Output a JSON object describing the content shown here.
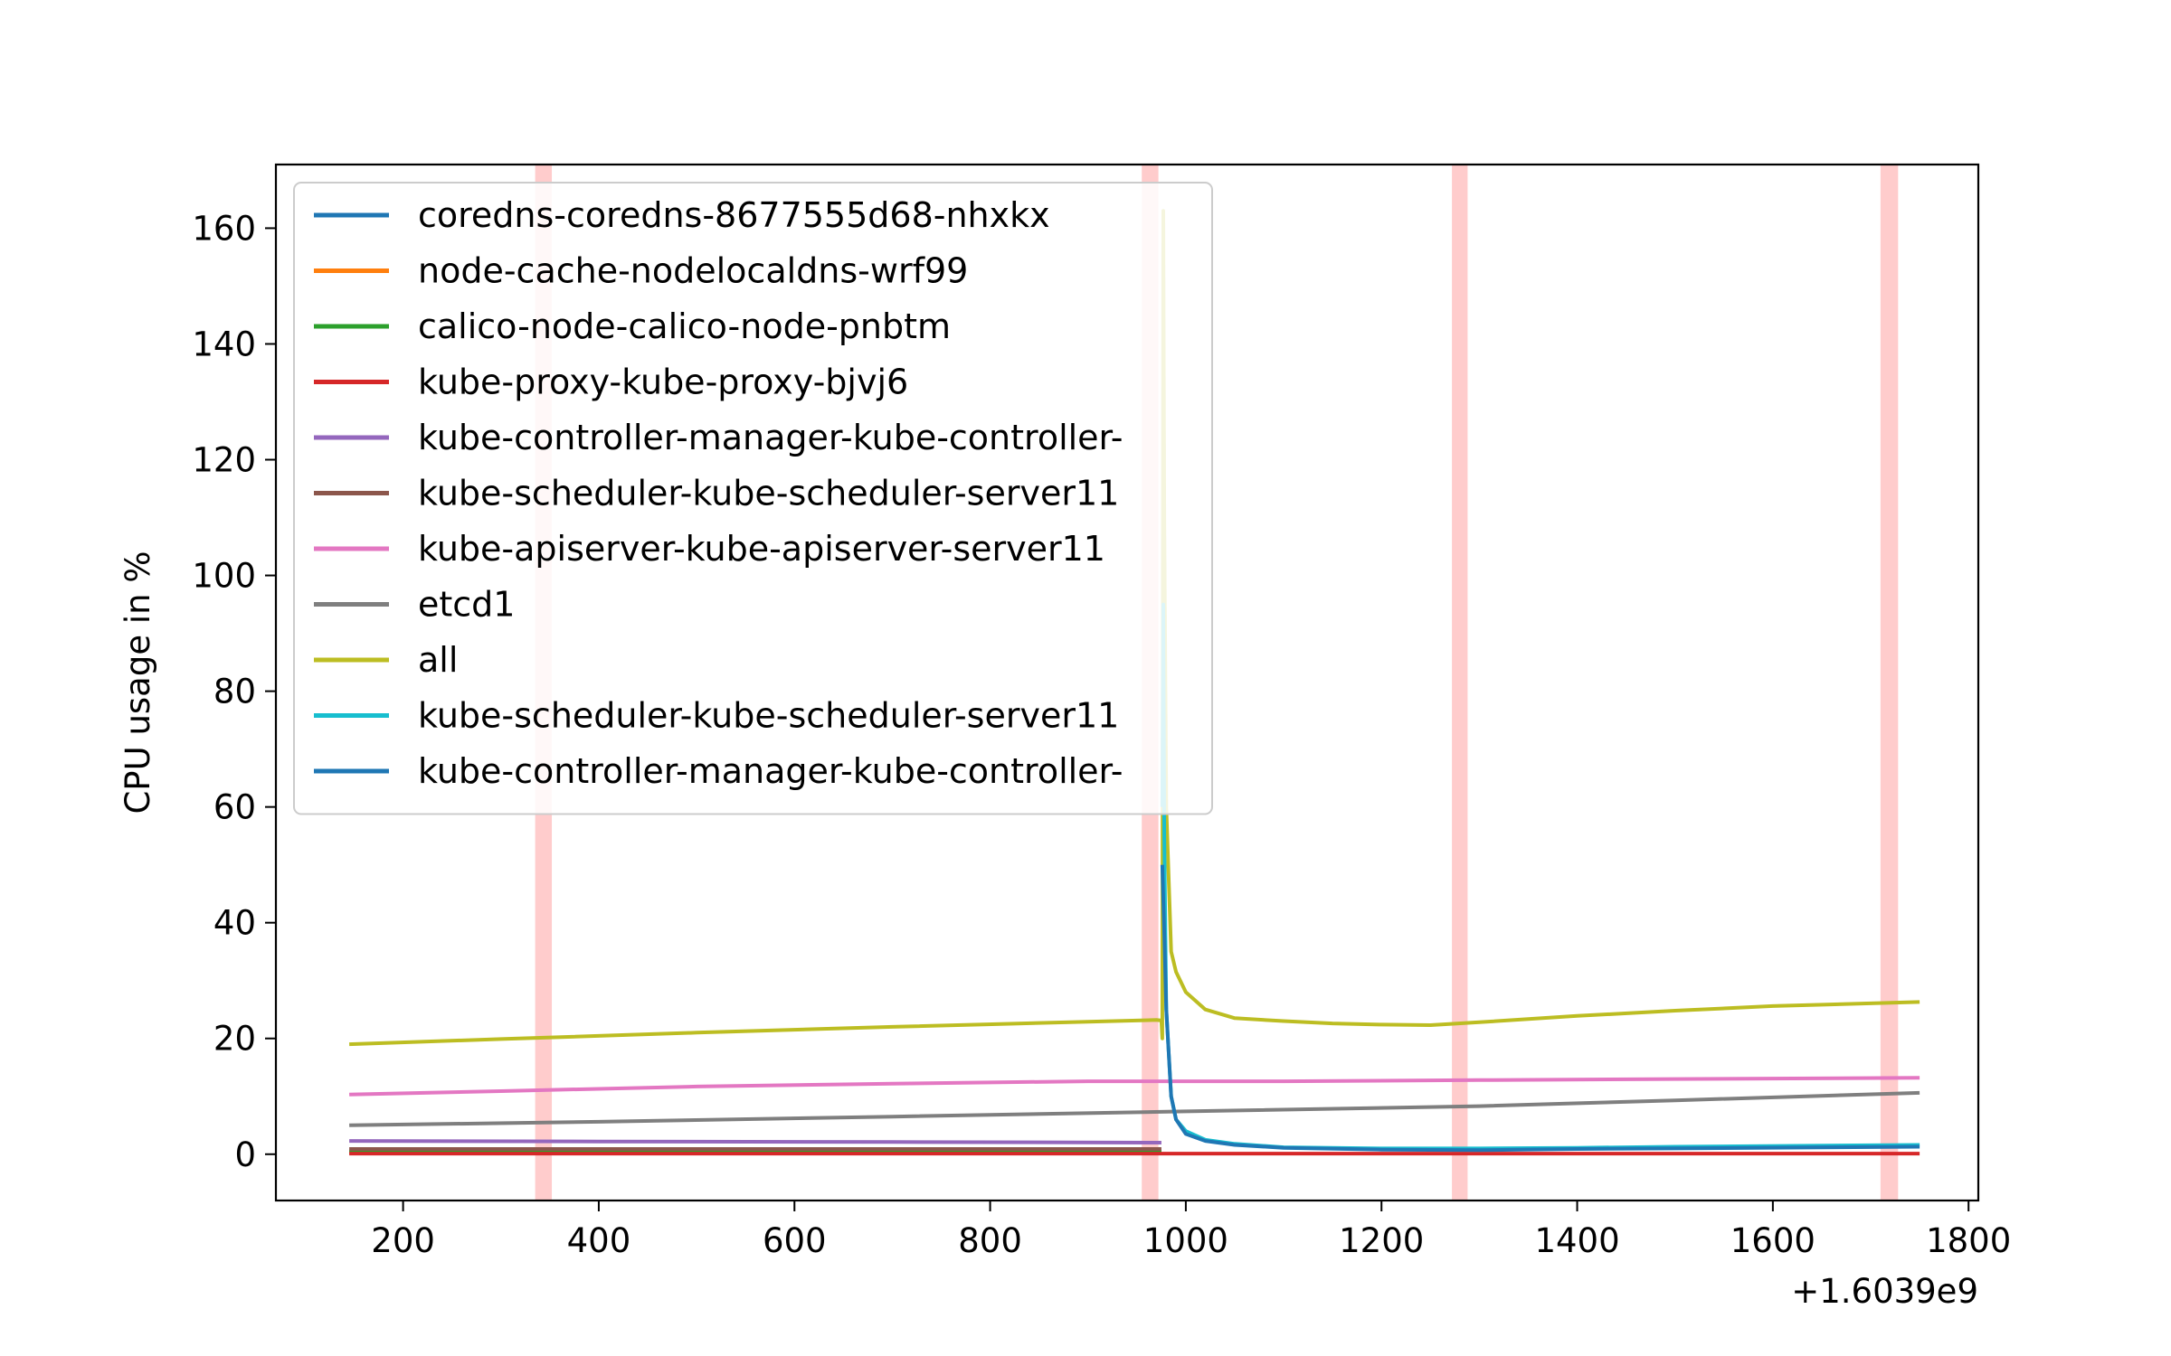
{
  "chart_data": {
    "type": "line",
    "xlabel": "",
    "ylabel": "CPU usage in %",
    "x_offset_label": "+1.6039e9",
    "xlim": [
      70,
      1810
    ],
    "ylim": [
      -8,
      171
    ],
    "x_ticks": [
      200,
      400,
      600,
      800,
      1000,
      1200,
      1400,
      1600,
      1800
    ],
    "y_ticks": [
      0,
      20,
      40,
      60,
      80,
      100,
      120,
      140,
      160
    ],
    "grid": false,
    "legend_position": "upper-left",
    "highlight_bands": [
      {
        "x0": 335,
        "x1": 352,
        "color": "#ffb0b0"
      },
      {
        "x0": 955,
        "x1": 972,
        "color": "#ffb0b0"
      },
      {
        "x0": 1272,
        "x1": 1288,
        "color": "#ffb0b0"
      },
      {
        "x0": 1710,
        "x1": 1728,
        "color": "#ffb0b0"
      }
    ],
    "series": [
      {
        "name": "coredns-coredns-8677555d68-nhxkx",
        "color": "#1f77b4",
        "x": [
          145,
          400,
          700,
          975
        ],
        "y": [
          0.3,
          0.3,
          0.3,
          0.3
        ]
      },
      {
        "name": "node-cache-nodelocaldns-wrf99",
        "color": "#ff7f0e",
        "x": [
          145,
          400,
          700,
          975
        ],
        "y": [
          0.4,
          0.4,
          0.4,
          0.4
        ]
      },
      {
        "name": "calico-node-calico-node-pnbtm",
        "color": "#2ca02c",
        "x": [
          145,
          400,
          700,
          975
        ],
        "y": [
          0.5,
          0.5,
          0.5,
          0.5
        ]
      },
      {
        "name": "kube-proxy-kube-proxy-bjvj6",
        "color": "#d62728",
        "x": [
          145,
          400,
          700,
          1000,
          1400,
          1750
        ],
        "y": [
          0.1,
          0.1,
          0.1,
          0.1,
          0.1,
          0.1
        ]
      },
      {
        "name": "kube-controller-manager-kube-controller-",
        "color": "#9467bd",
        "x": [
          145,
          400,
          700,
          975
        ],
        "y": [
          2.3,
          2.2,
          2.1,
          2.0
        ]
      },
      {
        "name": "kube-scheduler-kube-scheduler-server11",
        "color": "#8c564b",
        "x": [
          145,
          400,
          700,
          975
        ],
        "y": [
          0.9,
          0.9,
          0.9,
          0.9
        ]
      },
      {
        "name": "kube-apiserver-kube-apiserver-server11",
        "color": "#e377c2",
        "x": [
          145,
          300,
          500,
          700,
          900,
          1100,
          1300,
          1500,
          1750
        ],
        "y": [
          10.3,
          10.9,
          11.7,
          12.2,
          12.6,
          12.6,
          12.8,
          13.0,
          13.2
        ]
      },
      {
        "name": "etcd1",
        "color": "#7f7f7f",
        "x": [
          145,
          400,
          700,
          1000,
          1300,
          1500,
          1750
        ],
        "y": [
          5.0,
          5.6,
          6.5,
          7.4,
          8.3,
          9.3,
          10.6
        ]
      },
      {
        "name": "all",
        "color": "#bcbd22",
        "x": [
          145,
          300,
          500,
          700,
          900,
          970,
          975,
          976,
          977,
          978,
          980,
          985,
          990,
          1000,
          1020,
          1050,
          1100,
          1150,
          1200,
          1250,
          1300,
          1400,
          1500,
          1600,
          1750
        ],
        "y": [
          19.0,
          19.9,
          21.0,
          22.0,
          22.9,
          23.2,
          23.1,
          20.0,
          163.0,
          110.0,
          60.0,
          35.0,
          31.5,
          28.0,
          25.0,
          23.5,
          23.0,
          22.6,
          22.4,
          22.3,
          22.8,
          23.9,
          24.8,
          25.6,
          26.3
        ]
      },
      {
        "name": "kube-scheduler-kube-scheduler-server11",
        "color": "#17becf",
        "x": [
          976,
          977,
          978,
          980,
          985,
          990,
          1000,
          1020,
          1050,
          1100,
          1200,
          1300,
          1400,
          1500,
          1750
        ],
        "y": [
          60.0,
          95.0,
          55.0,
          25.0,
          10.0,
          6.0,
          4.0,
          2.5,
          1.8,
          1.2,
          1.0,
          1.0,
          1.1,
          1.3,
          1.6
        ]
      },
      {
        "name": "kube-controller-manager-kube-controller-",
        "color": "#1f77b4",
        "x": [
          976,
          978,
          980,
          985,
          990,
          1000,
          1020,
          1050,
          1100,
          1200,
          1300,
          1400,
          1500,
          1750
        ],
        "y": [
          50.0,
          38.0,
          25.0,
          10.0,
          6.0,
          3.5,
          2.3,
          1.6,
          1.1,
          0.8,
          0.7,
          0.9,
          1.0,
          1.3
        ]
      }
    ]
  }
}
